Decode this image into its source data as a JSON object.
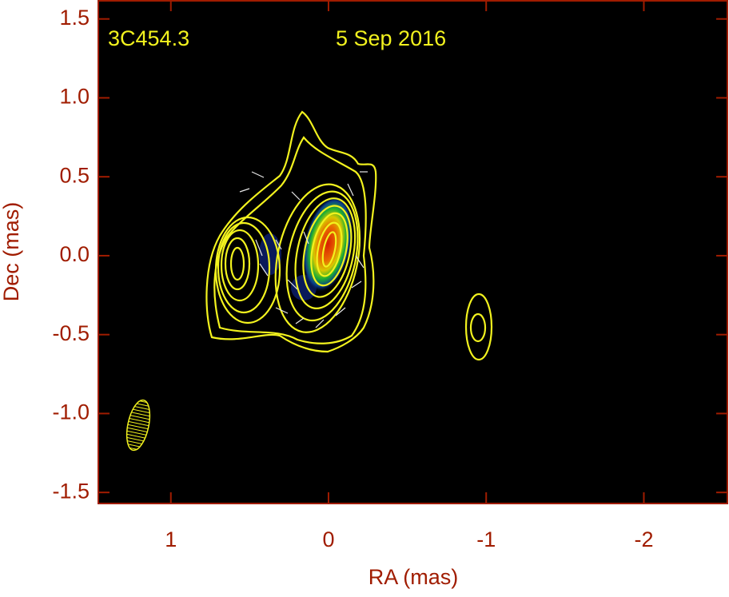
{
  "chart_data": {
    "type": "image",
    "annotations": [
      "3C454.3",
      "5 Sep 2016"
    ],
    "xlabel": "RA (mas)",
    "ylabel": "Dec (mas)",
    "xlim": [
      1.46,
      -2.53
    ],
    "ylim": [
      -1.57,
      1.62
    ],
    "xticks": [
      1,
      0,
      -1,
      -2
    ],
    "yticks": [
      1.5,
      {
        "value": 1.0,
        "label": "1.0"
      },
      0.5,
      {
        "value": 0.0,
        "label": "0.0"
      },
      -0.5,
      {
        "value": -1.0,
        "label": "-1.0"
      },
      -1.5
    ],
    "axis_color": "#a01c00",
    "contour_color": "#f2f21e",
    "background": "#000000"
  }
}
